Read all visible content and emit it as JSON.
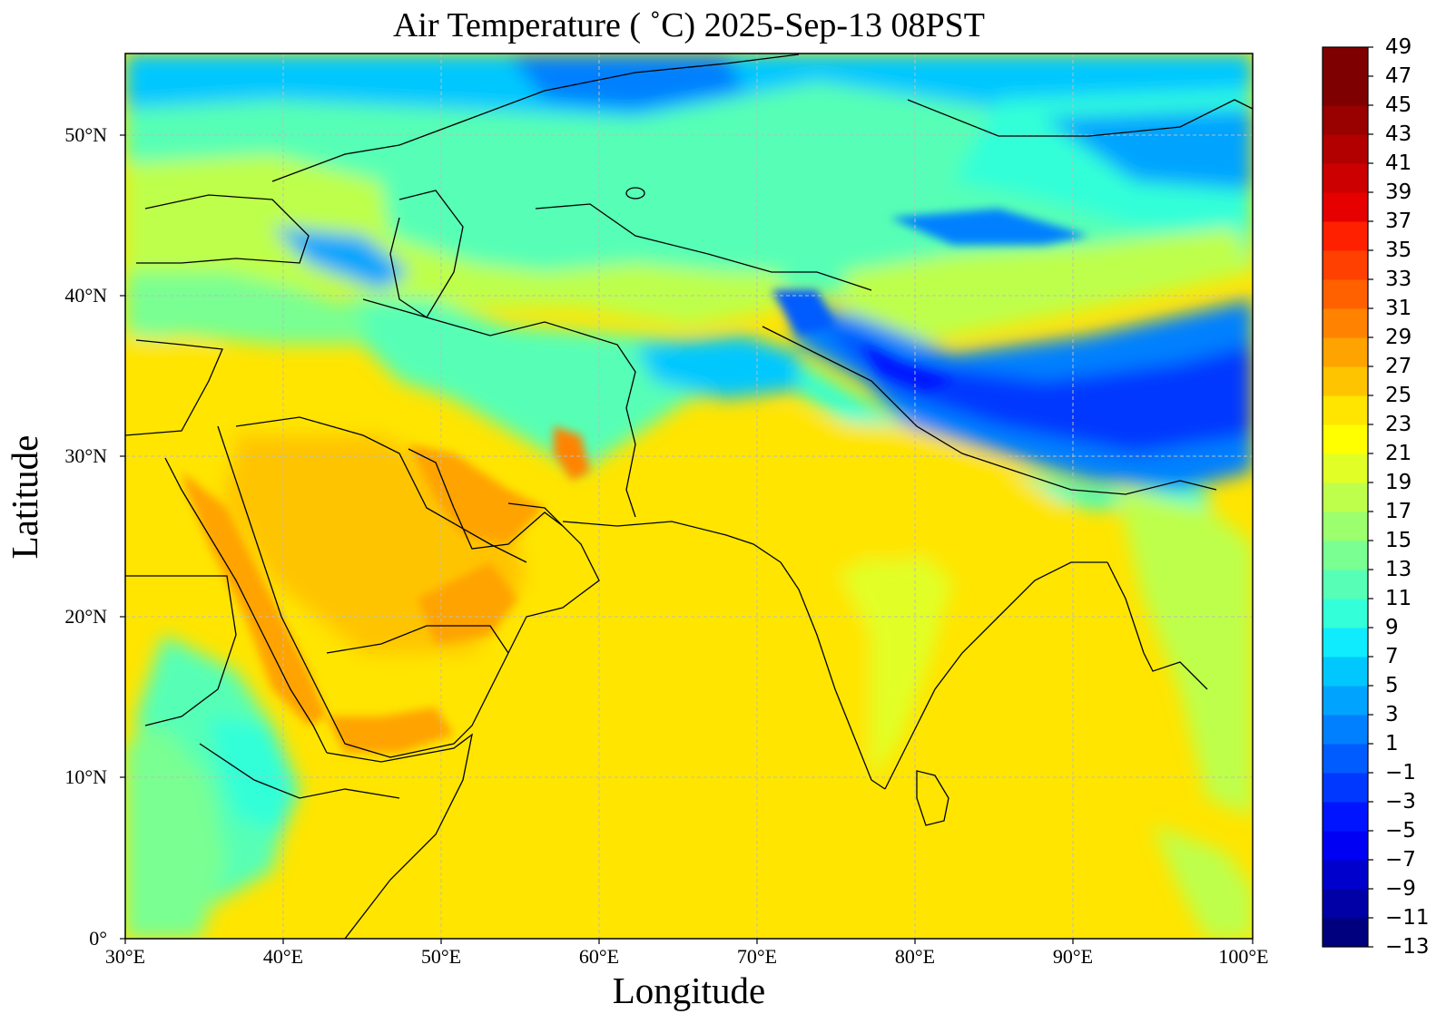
{
  "title": "Air Temperature ( ˚C)  2025-Sep-13 08PST",
  "xlabel": "Longitude",
  "ylabel": "Latitude",
  "x_ticks": [
    "30°E",
    "40°E",
    "50°E",
    "60°E",
    "70°E",
    "80°E",
    "90°E",
    "100°E"
  ],
  "y_ticks": [
    "0°",
    "10°N",
    "20°N",
    "30°N",
    "40°N",
    "50°N"
  ],
  "colorbar": {
    "min": -13,
    "max": 49,
    "step": 2,
    "labels": [
      "49",
      "47",
      "45",
      "43",
      "41",
      "39",
      "37",
      "35",
      "33",
      "31",
      "29",
      "27",
      "25",
      "23",
      "21",
      "19",
      "17",
      "15",
      "13",
      "11",
      "9",
      "7",
      "5",
      "3",
      "1",
      "−1",
      "−3",
      "−5",
      "−7",
      "−9",
      "−11",
      "−13"
    ],
    "colors": [
      "#00007f",
      "#0000a6",
      "#0000cd",
      "#0000f4",
      "#0014ff",
      "#0038ff",
      "#005cff",
      "#0080ff",
      "#00a4ff",
      "#00c8ff",
      "#0fecfe",
      "#33ffd8",
      "#56ffb5",
      "#79ff92",
      "#9cff6e",
      "#beff4b",
      "#e1ff27",
      "#ffff00",
      "#ffe500",
      "#ffc400",
      "#ffa300",
      "#ff8300",
      "#ff6100",
      "#ff4000",
      "#ff2000",
      "#e60000",
      "#cc0000",
      "#b20000",
      "#990000",
      "#7f0000",
      "#7f0000"
    ]
  },
  "map": {
    "extent": {
      "lon": [
        30,
        100
      ],
      "lat": [
        0,
        55
      ]
    },
    "gridlines": true,
    "variable": "Air Temperature",
    "units": "˚C"
  }
}
